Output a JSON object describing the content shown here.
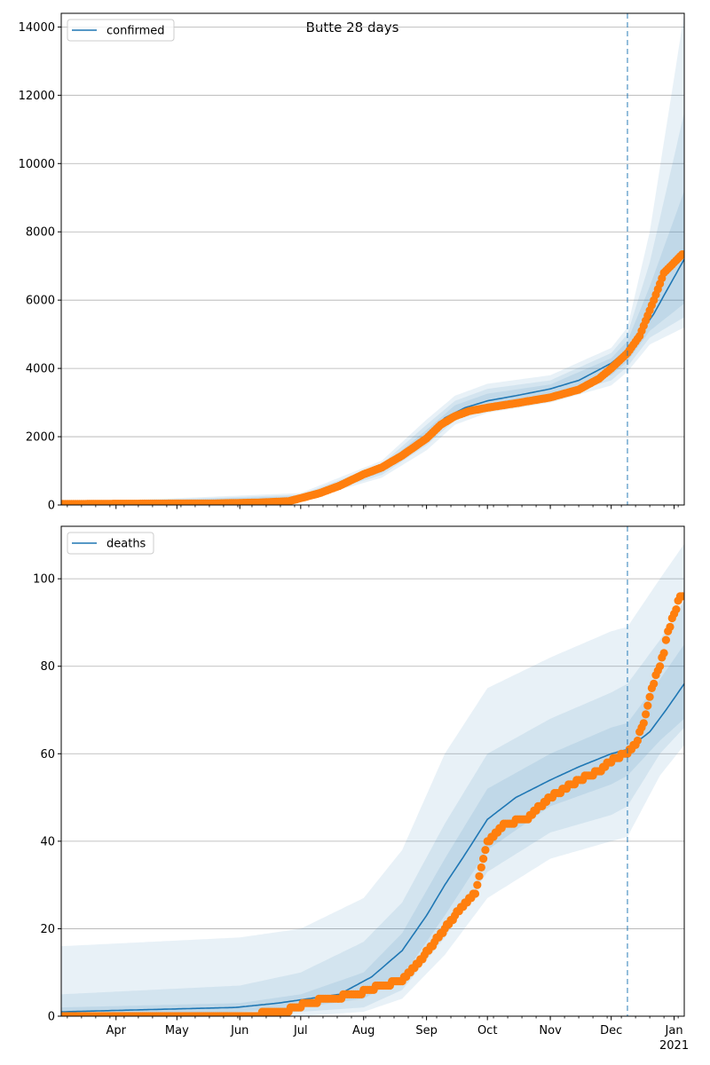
{
  "figure_title": "Butte 28 days",
  "colors": {
    "model": "#1f77b4",
    "observed": "#ff7f0e",
    "grid": "#b0b0b0",
    "band": "#1f77b4"
  },
  "x_axis": {
    "month_labels": [
      "Apr",
      "May",
      "Jun",
      "Jul",
      "Aug",
      "Sep",
      "Oct",
      "Nov",
      "Dec",
      "Jan"
    ],
    "year_label": "2021"
  },
  "chart_data": [
    {
      "type": "line",
      "legend": [
        "confirmed"
      ],
      "legend_position": "top-left",
      "grid": "horizontal",
      "xlim": [
        "2020-03-05",
        "2021-01-06"
      ],
      "ylim": [
        0,
        14400
      ],
      "yticks": [
        0,
        2000,
        4000,
        6000,
        8000,
        10000,
        12000,
        14000
      ],
      "forecast_start": "2020-12-09",
      "model": {
        "name": "confirmed",
        "x": [
          "2020-03-05",
          "2020-06-01",
          "2020-06-25",
          "2020-07-10",
          "2020-07-25",
          "2020-08-10",
          "2020-08-25",
          "2020-09-01",
          "2020-09-10",
          "2020-09-20",
          "2020-10-01",
          "2020-10-15",
          "2020-11-01",
          "2020-11-15",
          "2020-12-01",
          "2020-12-09",
          "2020-12-15",
          "2020-12-22",
          "2020-12-29",
          "2021-01-06"
        ],
        "y": [
          30,
          60,
          120,
          300,
          650,
          1050,
          1600,
          2000,
          2550,
          2850,
          3050,
          3200,
          3400,
          3650,
          4150,
          4550,
          5000,
          5600,
          6350,
          7200
        ]
      },
      "bands": [
        {
          "x": [
            "2020-03-05",
            "2020-07-01",
            "2020-08-10",
            "2020-09-01",
            "2020-09-15",
            "2020-10-01",
            "2020-11-01",
            "2020-12-01",
            "2020-12-09",
            "2020-12-20",
            "2021-01-06"
          ],
          "lower": [
            0,
            120,
            800,
            1600,
            2350,
            2700,
            3000,
            3500,
            3900,
            4700,
            5200
          ],
          "upper": [
            60,
            350,
            1300,
            2500,
            3200,
            3550,
            3800,
            4600,
            5200,
            8000,
            14400
          ]
        },
        {
          "x": [
            "2020-03-05",
            "2020-07-01",
            "2020-08-10",
            "2020-09-01",
            "2020-09-15",
            "2020-10-01",
            "2020-11-01",
            "2020-12-01",
            "2020-12-09",
            "2020-12-20",
            "2021-01-06"
          ],
          "lower": [
            0,
            150,
            880,
            1750,
            2480,
            2820,
            3120,
            3650,
            4050,
            4900,
            5500
          ],
          "upper": [
            50,
            300,
            1200,
            2350,
            3050,
            3400,
            3650,
            4450,
            5000,
            7100,
            11500
          ]
        },
        {
          "x": [
            "2020-03-05",
            "2020-07-01",
            "2020-08-10",
            "2020-09-01",
            "2020-09-15",
            "2020-10-01",
            "2020-11-01",
            "2020-12-01",
            "2020-12-09",
            "2020-12-20",
            "2021-01-06"
          ],
          "lower": [
            10,
            180,
            950,
            1850,
            2580,
            2920,
            3230,
            3800,
            4200,
            5100,
            5900
          ],
          "upper": [
            45,
            260,
            1130,
            2200,
            2920,
            3260,
            3530,
            4300,
            4800,
            6400,
            9200
          ]
        }
      ],
      "observed": {
        "x": [
          "2020-03-05",
          "2020-05-20",
          "2020-06-10",
          "2020-06-25",
          "2020-07-01",
          "2020-07-10",
          "2020-07-20",
          "2020-08-01",
          "2020-08-10",
          "2020-08-20",
          "2020-09-01",
          "2020-09-08",
          "2020-09-15",
          "2020-09-22",
          "2020-10-01",
          "2020-10-15",
          "2020-11-01",
          "2020-11-15",
          "2020-11-25",
          "2020-12-01",
          "2020-12-09",
          "2020-12-15",
          "2020-12-22",
          "2020-12-27",
          "2021-01-06"
        ],
        "y": [
          30,
          45,
          70,
          110,
          200,
          340,
          560,
          900,
          1100,
          1450,
          1950,
          2350,
          2600,
          2750,
          2850,
          2980,
          3150,
          3380,
          3700,
          4000,
          4450,
          4950,
          6000,
          6800,
          7400
        ]
      }
    },
    {
      "type": "line",
      "legend": [
        "deaths"
      ],
      "legend_position": "top-left",
      "grid": "horizontal",
      "xlim": [
        "2020-03-05",
        "2021-01-06"
      ],
      "ylim": [
        0,
        112
      ],
      "yticks": [
        0,
        20,
        40,
        60,
        80,
        100
      ],
      "forecast_start": "2020-12-09",
      "model": {
        "name": "deaths",
        "x": [
          "2020-03-05",
          "2020-05-30",
          "2020-06-20",
          "2020-07-05",
          "2020-07-20",
          "2020-08-05",
          "2020-08-20",
          "2020-09-01",
          "2020-09-10",
          "2020-09-20",
          "2020-10-01",
          "2020-10-15",
          "2020-11-01",
          "2020-11-15",
          "2020-12-01",
          "2020-12-09",
          "2020-12-20",
          "2020-12-28",
          "2021-01-06"
        ],
        "y": [
          1,
          2,
          3,
          4,
          5,
          9,
          15,
          23,
          30,
          37,
          45,
          50,
          54,
          57,
          60,
          61,
          65,
          70,
          76
        ]
      },
      "bands": [
        {
          "x": [
            "2020-03-05",
            "2020-06-01",
            "2020-07-01",
            "2020-08-01",
            "2020-08-20",
            "2020-09-10",
            "2020-10-01",
            "2020-11-01",
            "2020-12-01",
            "2020-12-09",
            "2020-12-25",
            "2021-01-06"
          ],
          "lower": [
            0,
            0,
            0,
            1,
            4,
            14,
            27,
            36,
            40,
            41,
            55,
            62
          ],
          "upper": [
            16,
            18,
            20,
            27,
            38,
            60,
            75,
            82,
            88,
            89,
            100,
            108
          ]
        },
        {
          "x": [
            "2020-03-05",
            "2020-06-01",
            "2020-07-01",
            "2020-08-01",
            "2020-08-20",
            "2020-09-10",
            "2020-10-01",
            "2020-11-01",
            "2020-12-01",
            "2020-12-09",
            "2020-12-25",
            "2021-01-06"
          ],
          "lower": [
            0,
            0,
            1,
            2,
            6,
            18,
            33,
            42,
            46,
            48,
            60,
            66
          ],
          "upper": [
            5,
            7,
            10,
            17,
            26,
            44,
            60,
            68,
            74,
            76,
            86,
            95
          ]
        },
        {
          "x": [
            "2020-03-05",
            "2020-06-01",
            "2020-07-01",
            "2020-08-01",
            "2020-08-20",
            "2020-09-10",
            "2020-10-01",
            "2020-11-01",
            "2020-12-01",
            "2020-12-09",
            "2020-12-25",
            "2021-01-06"
          ],
          "lower": [
            0,
            1,
            2,
            4,
            9,
            23,
            38,
            48,
            53,
            55,
            63,
            68
          ],
          "upper": [
            2,
            3,
            5,
            10,
            19,
            36,
            52,
            60,
            66,
            67,
            77,
            85
          ]
        }
      ],
      "observed": {
        "x": [
          "2020-03-05",
          "2020-06-01",
          "2020-06-23",
          "2020-07-05",
          "2020-07-15",
          "2020-07-28",
          "2020-08-10",
          "2020-08-20",
          "2020-08-28",
          "2020-09-05",
          "2020-09-15",
          "2020-09-25",
          "2020-10-01",
          "2020-10-10",
          "2020-10-20",
          "2020-11-01",
          "2020-11-15",
          "2020-11-25",
          "2020-12-03",
          "2020-12-09",
          "2020-12-13",
          "2020-12-17",
          "2020-12-21",
          "2020-12-27",
          "2020-12-29",
          "2021-01-04"
        ],
        "y": [
          0,
          0,
          1,
          3,
          4,
          5,
          7,
          8,
          12,
          17,
          23,
          28,
          40,
          44,
          45,
          50,
          54,
          56,
          59,
          60,
          62,
          67,
          75,
          83,
          88,
          96
        ]
      }
    }
  ]
}
